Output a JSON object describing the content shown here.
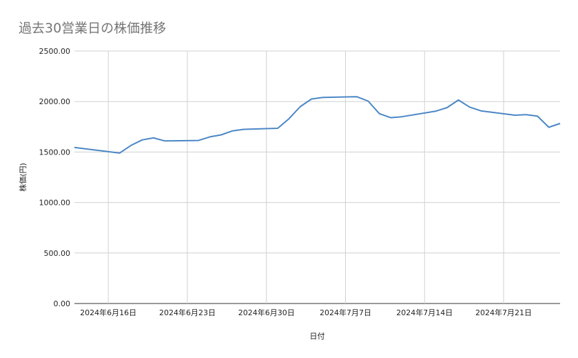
{
  "chart_data": {
    "type": "line",
    "title": "過去30営業日の株価推移",
    "xlabel": "日付",
    "ylabel": "株価(円)",
    "ylim": [
      0,
      2500
    ],
    "yticks": [
      0,
      500,
      1000,
      1500,
      2000,
      2500
    ],
    "ytick_labels": [
      "0.00",
      "500.00",
      "1000.00",
      "1500.00",
      "2000.00",
      "2500.00"
    ],
    "xlim": [
      "2024-06-13",
      "2024-07-26"
    ],
    "xticks": [
      "2024-06-16",
      "2024-06-23",
      "2024-06-30",
      "2024-07-07",
      "2024-07-14",
      "2024-07-21"
    ],
    "xtick_labels": [
      "2024年6月16日",
      "2024年6月23日",
      "2024年6月30日",
      "2024年7月7日",
      "2024年7月14日",
      "2024年7月21日"
    ],
    "grid": true,
    "legend": "none",
    "series": [
      {
        "color": "#4a86c5",
        "points": [
          [
            "2024-06-13",
            1545
          ],
          [
            "2024-06-17",
            1490
          ],
          [
            "2024-06-18",
            1565
          ],
          [
            "2024-06-19",
            1620
          ],
          [
            "2024-06-20",
            1640
          ],
          [
            "2024-06-21",
            1610
          ],
          [
            "2024-06-24",
            1615
          ],
          [
            "2024-06-25",
            1650
          ],
          [
            "2024-06-26",
            1670
          ],
          [
            "2024-06-27",
            1710
          ],
          [
            "2024-06-28",
            1725
          ],
          [
            "2024-07-01",
            1735
          ],
          [
            "2024-07-02",
            1830
          ],
          [
            "2024-07-03",
            1950
          ],
          [
            "2024-07-04",
            2025
          ],
          [
            "2024-07-05",
            2040
          ],
          [
            "2024-07-08",
            2048
          ],
          [
            "2024-07-09",
            2005
          ],
          [
            "2024-07-10",
            1880
          ],
          [
            "2024-07-11",
            1840
          ],
          [
            "2024-07-12",
            1850
          ],
          [
            "2024-07-15",
            1905
          ],
          [
            "2024-07-16",
            1940
          ],
          [
            "2024-07-17",
            2015
          ],
          [
            "2024-07-18",
            1945
          ],
          [
            "2024-07-19",
            1908
          ],
          [
            "2024-07-22",
            1865
          ],
          [
            "2024-07-23",
            1870
          ],
          [
            "2024-07-24",
            1855
          ],
          [
            "2024-07-25",
            1745
          ],
          [
            "2024-07-26",
            1783
          ]
        ]
      }
    ]
  }
}
